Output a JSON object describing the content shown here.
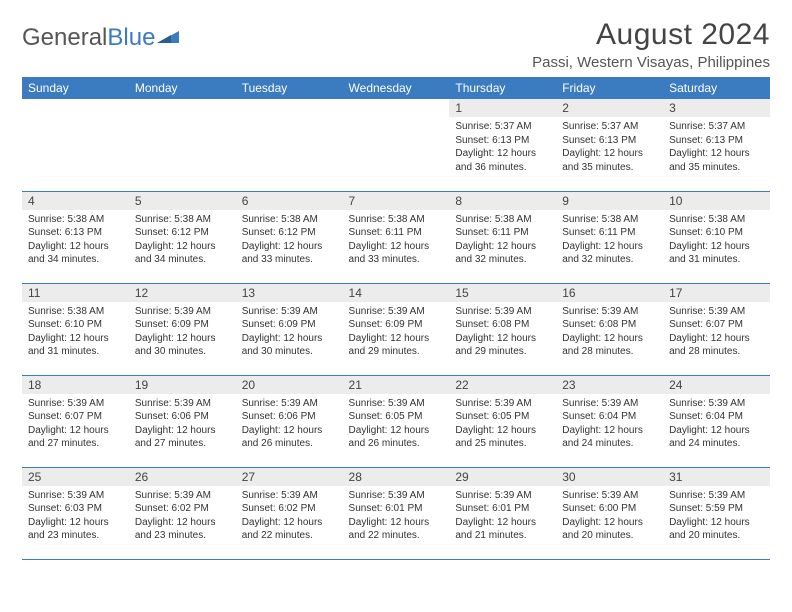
{
  "logo": {
    "text1": "General",
    "text2": "Blue"
  },
  "title": "August 2024",
  "location": "Passi, Western Visayas, Philippines",
  "header_color": "#3b7bbf",
  "grid_border_color": "#3b7bbf",
  "daynum_bg": "#ececec",
  "weekdays": [
    "Sunday",
    "Monday",
    "Tuesday",
    "Wednesday",
    "Thursday",
    "Friday",
    "Saturday"
  ],
  "weeks": [
    [
      null,
      null,
      null,
      null,
      {
        "n": "1",
        "sr": "5:37 AM",
        "ss": "6:13 PM",
        "dl": "12 hours and 36 minutes."
      },
      {
        "n": "2",
        "sr": "5:37 AM",
        "ss": "6:13 PM",
        "dl": "12 hours and 35 minutes."
      },
      {
        "n": "3",
        "sr": "5:37 AM",
        "ss": "6:13 PM",
        "dl": "12 hours and 35 minutes."
      }
    ],
    [
      {
        "n": "4",
        "sr": "5:38 AM",
        "ss": "6:13 PM",
        "dl": "12 hours and 34 minutes."
      },
      {
        "n": "5",
        "sr": "5:38 AM",
        "ss": "6:12 PM",
        "dl": "12 hours and 34 minutes."
      },
      {
        "n": "6",
        "sr": "5:38 AM",
        "ss": "6:12 PM",
        "dl": "12 hours and 33 minutes."
      },
      {
        "n": "7",
        "sr": "5:38 AM",
        "ss": "6:11 PM",
        "dl": "12 hours and 33 minutes."
      },
      {
        "n": "8",
        "sr": "5:38 AM",
        "ss": "6:11 PM",
        "dl": "12 hours and 32 minutes."
      },
      {
        "n": "9",
        "sr": "5:38 AM",
        "ss": "6:11 PM",
        "dl": "12 hours and 32 minutes."
      },
      {
        "n": "10",
        "sr": "5:38 AM",
        "ss": "6:10 PM",
        "dl": "12 hours and 31 minutes."
      }
    ],
    [
      {
        "n": "11",
        "sr": "5:38 AM",
        "ss": "6:10 PM",
        "dl": "12 hours and 31 minutes."
      },
      {
        "n": "12",
        "sr": "5:39 AM",
        "ss": "6:09 PM",
        "dl": "12 hours and 30 minutes."
      },
      {
        "n": "13",
        "sr": "5:39 AM",
        "ss": "6:09 PM",
        "dl": "12 hours and 30 minutes."
      },
      {
        "n": "14",
        "sr": "5:39 AM",
        "ss": "6:09 PM",
        "dl": "12 hours and 29 minutes."
      },
      {
        "n": "15",
        "sr": "5:39 AM",
        "ss": "6:08 PM",
        "dl": "12 hours and 29 minutes."
      },
      {
        "n": "16",
        "sr": "5:39 AM",
        "ss": "6:08 PM",
        "dl": "12 hours and 28 minutes."
      },
      {
        "n": "17",
        "sr": "5:39 AM",
        "ss": "6:07 PM",
        "dl": "12 hours and 28 minutes."
      }
    ],
    [
      {
        "n": "18",
        "sr": "5:39 AM",
        "ss": "6:07 PM",
        "dl": "12 hours and 27 minutes."
      },
      {
        "n": "19",
        "sr": "5:39 AM",
        "ss": "6:06 PM",
        "dl": "12 hours and 27 minutes."
      },
      {
        "n": "20",
        "sr": "5:39 AM",
        "ss": "6:06 PM",
        "dl": "12 hours and 26 minutes."
      },
      {
        "n": "21",
        "sr": "5:39 AM",
        "ss": "6:05 PM",
        "dl": "12 hours and 26 minutes."
      },
      {
        "n": "22",
        "sr": "5:39 AM",
        "ss": "6:05 PM",
        "dl": "12 hours and 25 minutes."
      },
      {
        "n": "23",
        "sr": "5:39 AM",
        "ss": "6:04 PM",
        "dl": "12 hours and 24 minutes."
      },
      {
        "n": "24",
        "sr": "5:39 AM",
        "ss": "6:04 PM",
        "dl": "12 hours and 24 minutes."
      }
    ],
    [
      {
        "n": "25",
        "sr": "5:39 AM",
        "ss": "6:03 PM",
        "dl": "12 hours and 23 minutes."
      },
      {
        "n": "26",
        "sr": "5:39 AM",
        "ss": "6:02 PM",
        "dl": "12 hours and 23 minutes."
      },
      {
        "n": "27",
        "sr": "5:39 AM",
        "ss": "6:02 PM",
        "dl": "12 hours and 22 minutes."
      },
      {
        "n": "28",
        "sr": "5:39 AM",
        "ss": "6:01 PM",
        "dl": "12 hours and 22 minutes."
      },
      {
        "n": "29",
        "sr": "5:39 AM",
        "ss": "6:01 PM",
        "dl": "12 hours and 21 minutes."
      },
      {
        "n": "30",
        "sr": "5:39 AM",
        "ss": "6:00 PM",
        "dl": "12 hours and 20 minutes."
      },
      {
        "n": "31",
        "sr": "5:39 AM",
        "ss": "5:59 PM",
        "dl": "12 hours and 20 minutes."
      }
    ]
  ],
  "labels": {
    "sunrise": "Sunrise:",
    "sunset": "Sunset:",
    "daylight": "Daylight:"
  }
}
